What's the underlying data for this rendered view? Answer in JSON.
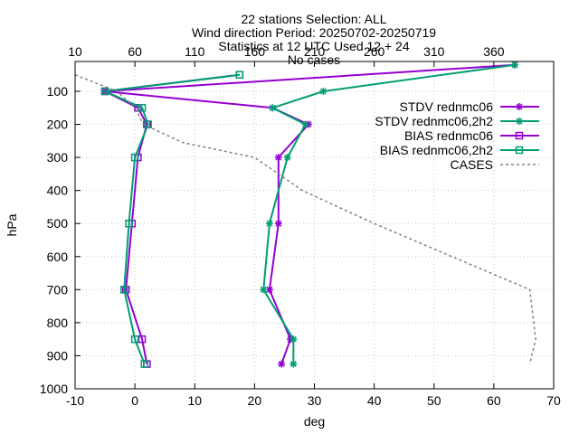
{
  "chart_data": {
    "type": "line",
    "title_lines": [
      "22 stations Selection: ALL",
      "Wind direction  Period: 20250702-20250719",
      "Statistics at 12 UTC  Used 12 + 24",
      "No cases"
    ],
    "xlabel": "deg",
    "ylabel": "hPa",
    "xlim": [
      -10,
      70
    ],
    "ylim": [
      1000,
      20
    ],
    "y_inverted": true,
    "x_ticks": [
      "-10",
      "0",
      "10",
      "20",
      "30",
      "40",
      "50",
      "60",
      "70"
    ],
    "y_ticks": [
      "100",
      "200",
      "300",
      "400",
      "500",
      "600",
      "700",
      "800",
      "900",
      "1000"
    ],
    "x2_ticks": [
      "10",
      "60",
      "110",
      "160",
      "210",
      "260",
      "310",
      "360"
    ],
    "x2lim": [
      10,
      410
    ],
    "grid": true,
    "legend_position": "top-right",
    "series": [
      {
        "name": "STDV rednmc06",
        "color": "#9400d3",
        "marker": "star",
        "dash": "solid",
        "axis": "x1",
        "points": [
          [
            63.5,
            20
          ],
          [
            -5,
            100
          ],
          [
            23,
            150
          ],
          [
            29,
            200
          ],
          [
            24,
            300
          ],
          [
            24,
            500
          ],
          [
            22.5,
            700
          ],
          [
            26,
            850
          ],
          [
            24.5,
            925
          ]
        ]
      },
      {
        "name": "STDV rednmc06,2h2",
        "color": "#009e73",
        "marker": "star",
        "dash": "solid",
        "axis": "x1",
        "points": [
          [
            63.5,
            20
          ],
          [
            31.5,
            100
          ],
          [
            23,
            150
          ],
          [
            28.5,
            200
          ],
          [
            25.5,
            300
          ],
          [
            22.5,
            500
          ],
          [
            21.5,
            700
          ],
          [
            26.5,
            850
          ],
          [
            26.5,
            925
          ]
        ]
      },
      {
        "name": "BIAS rednmc06",
        "color": "#9400d3",
        "marker": "square",
        "dash": "solid",
        "axis": "x1",
        "points": [
          [
            17.5,
            50
          ],
          [
            -5,
            100
          ],
          [
            0.5,
            150
          ],
          [
            2,
            200
          ],
          [
            0.5,
            300
          ],
          [
            -0.5,
            500
          ],
          [
            -1.5,
            700
          ],
          [
            1.2,
            850
          ],
          [
            2,
            925
          ]
        ]
      },
      {
        "name": "BIAS rednmc06,2h2",
        "color": "#009e73",
        "marker": "square",
        "dash": "solid",
        "axis": "x1",
        "points": [
          [
            17.5,
            50
          ],
          [
            -5,
            100
          ],
          [
            1.2,
            150
          ],
          [
            2.2,
            200
          ],
          [
            0,
            300
          ],
          [
            -1,
            500
          ],
          [
            -1.8,
            700
          ],
          [
            0,
            850
          ],
          [
            1.6,
            925
          ]
        ]
      },
      {
        "name": "CASES",
        "color": "#808080",
        "marker": "none",
        "dash": "dashed",
        "axis": "x2",
        "points": [
          [
            10,
            50
          ],
          [
            45,
            100
          ],
          [
            60,
            150
          ],
          [
            67,
            200
          ],
          [
            100,
            255
          ],
          [
            160,
            300
          ],
          [
            200,
            400
          ],
          [
            260,
            500
          ],
          [
            390,
            700
          ],
          [
            395,
            850
          ],
          [
            390,
            925
          ]
        ]
      }
    ]
  }
}
